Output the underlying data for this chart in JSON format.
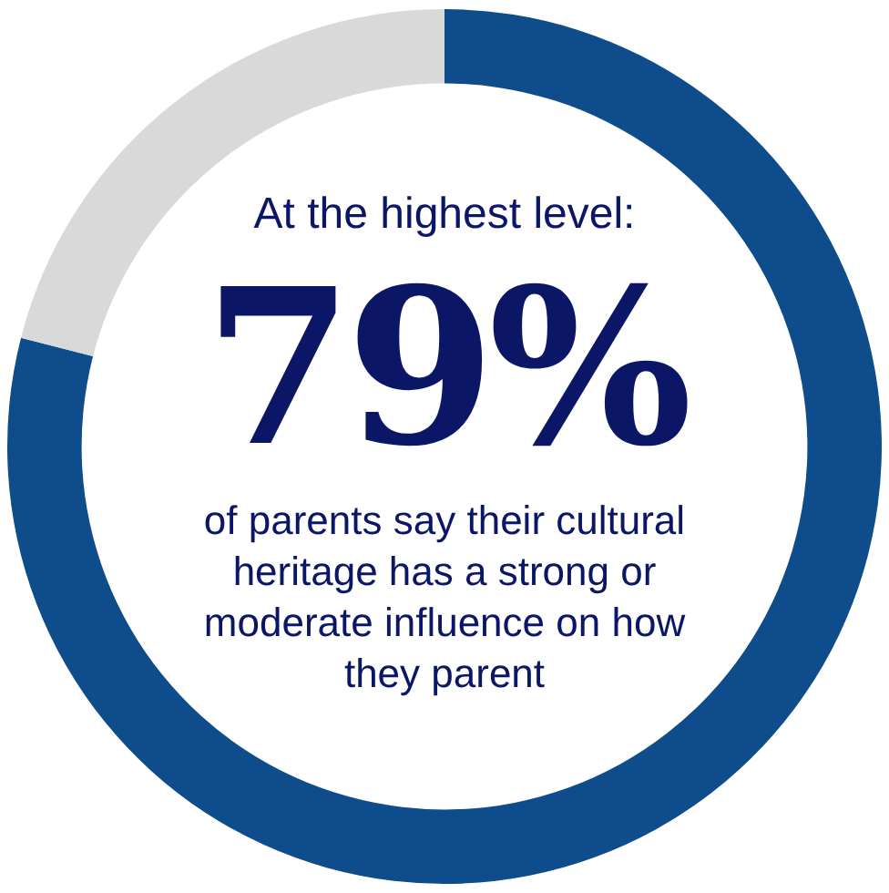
{
  "chart_data": {
    "type": "donut",
    "title": "At the highest level:",
    "categories": [
      null,
      null
    ],
    "values": [
      79,
      21
    ],
    "colors": [
      "#0f4c8c",
      "#d9d9d9"
    ],
    "value_labels": [
      "79%",
      null
    ],
    "legend": false,
    "annotations": [
      "of parents say their cultural heritage has a strong or moderate influence on how they parent"
    ]
  }
}
